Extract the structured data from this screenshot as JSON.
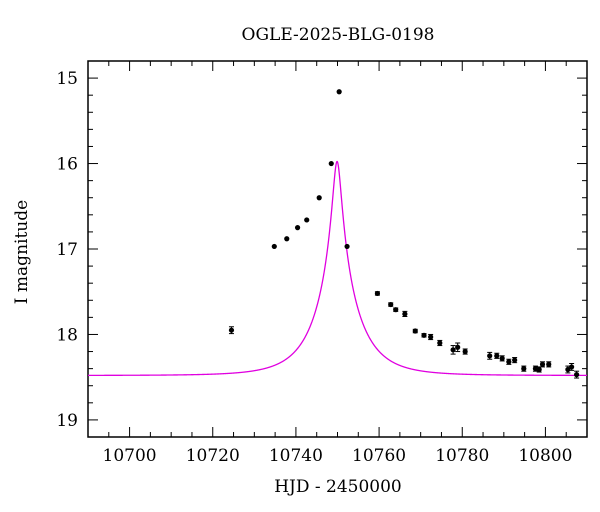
{
  "chart_data": {
    "type": "scatter",
    "title": "OGLE-2025-BLG-0198",
    "xlabel": "HJD - 2450000",
    "ylabel": "I magnitude",
    "xlim": [
      10690,
      10810
    ],
    "ylim": [
      19.2,
      14.8
    ],
    "y_inverted": true,
    "grid": false,
    "x_ticks": [
      10700,
      10720,
      10740,
      10760,
      10780,
      10800
    ],
    "y_ticks": [
      15,
      16,
      17,
      18,
      19
    ],
    "points": {
      "color": "#000000",
      "x": [
        10724.5,
        10734.8,
        10737.8,
        10740.4,
        10742.6,
        10745.6,
        10748.5,
        10750.4,
        10752.3,
        10759.6,
        10762.8,
        10764.0,
        10766.2,
        10768.7,
        10770.8,
        10772.4,
        10774.6,
        10777.8,
        10778.9,
        10780.7,
        10786.6,
        10788.3,
        10789.6,
        10791.2,
        10792.6,
        10794.8,
        10797.6,
        10798.5,
        10799.3,
        10800.8,
        10805.4,
        10806.3,
        10807.5
      ],
      "y": [
        17.95,
        16.97,
        16.88,
        16.75,
        16.66,
        16.4,
        16.0,
        15.16,
        16.97,
        17.52,
        17.65,
        17.71,
        17.76,
        17.96,
        18.01,
        18.03,
        18.1,
        18.18,
        18.15,
        18.2,
        18.25,
        18.25,
        18.28,
        18.32,
        18.3,
        18.4,
        18.4,
        18.41,
        18.35,
        18.35,
        18.41,
        18.38,
        18.47
      ],
      "err": [
        0.04,
        0.0,
        0.0,
        0.0,
        0.0,
        0.0,
        0.0,
        0.0,
        0.0,
        0.02,
        0.02,
        0.02,
        0.03,
        0.02,
        0.02,
        0.03,
        0.03,
        0.05,
        0.05,
        0.03,
        0.04,
        0.03,
        0.03,
        0.03,
        0.03,
        0.03,
        0.03,
        0.03,
        0.03,
        0.03,
        0.04,
        0.04,
        0.04
      ]
    },
    "model": {
      "color": "#e000e0",
      "t0": 10749.9,
      "u0": 0.1,
      "tE": 9.5,
      "I_base": 18.48,
      "t_start": 10690,
      "t_end": 10810
    }
  }
}
